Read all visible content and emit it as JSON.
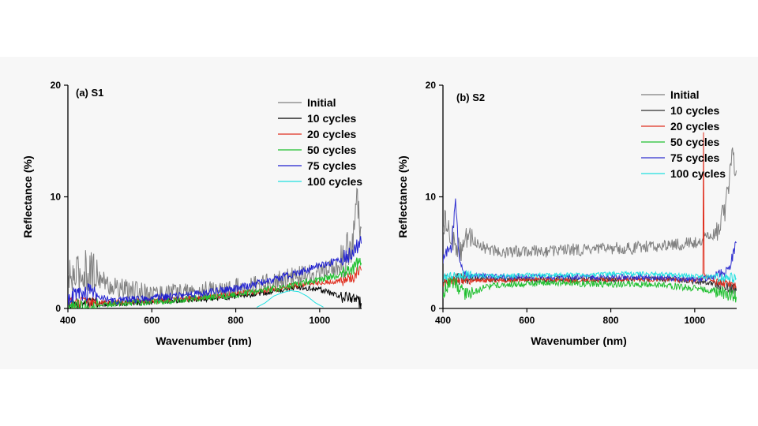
{
  "chart_data": [
    {
      "type": "line",
      "title": "(a) S1",
      "xlabel": "Wavenumber (nm)",
      "ylabel": "Reflectance (%)",
      "xlim": [
        400,
        1100
      ],
      "ylim": [
        0,
        20
      ],
      "xticks": [
        400,
        600,
        800,
        1000
      ],
      "yticks": [
        0,
        10,
        20
      ],
      "legend_position": "top-right",
      "series": [
        {
          "name": "Initial",
          "color": "#808080",
          "x": [
            400,
            450,
            500,
            550,
            600,
            650,
            700,
            750,
            800,
            850,
            900,
            950,
            1000,
            1050,
            1080,
            1090,
            1100
          ],
          "y": [
            2.5,
            3.5,
            2.0,
            1.6,
            1.4,
            1.4,
            1.5,
            1.6,
            1.8,
            2.1,
            2.5,
            2.9,
            3.2,
            3.8,
            6.0,
            9.5,
            7.0
          ]
        },
        {
          "name": "10 cycles",
          "color": "#000000",
          "x": [
            400,
            450,
            500,
            550,
            600,
            650,
            700,
            750,
            800,
            850,
            900,
            950,
            1000,
            1050,
            1080,
            1090,
            1100
          ],
          "y": [
            0.4,
            0.4,
            0.4,
            0.5,
            0.6,
            0.7,
            0.8,
            0.9,
            1.1,
            1.3,
            1.6,
            1.9,
            1.7,
            1.1,
            0.8,
            0.6,
            0.5
          ]
        },
        {
          "name": "20 cycles",
          "color": "#e03020",
          "x": [
            400,
            450,
            500,
            550,
            600,
            650,
            700,
            750,
            800,
            850,
            900,
            950,
            1000,
            1050,
            1080,
            1090,
            1100
          ],
          "y": [
            0.5,
            0.5,
            0.5,
            0.6,
            0.7,
            0.8,
            0.9,
            1.1,
            1.3,
            1.5,
            1.8,
            2.1,
            2.3,
            2.5,
            2.8,
            3.2,
            3.5
          ]
        },
        {
          "name": "50 cycles",
          "color": "#20c030",
          "x": [
            400,
            450,
            500,
            550,
            600,
            650,
            700,
            750,
            800,
            850,
            900,
            950,
            1000,
            1050,
            1080,
            1090,
            1100
          ],
          "y": [
            0.3,
            0.3,
            0.4,
            0.5,
            0.6,
            0.7,
            0.9,
            1.0,
            1.2,
            1.5,
            1.8,
            2.2,
            2.6,
            3.0,
            3.5,
            4.0,
            4.2
          ]
        },
        {
          "name": "75 cycles",
          "color": "#2020d0",
          "x": [
            400,
            450,
            500,
            550,
            600,
            650,
            700,
            750,
            800,
            850,
            900,
            950,
            1000,
            1050,
            1080,
            1090,
            1100
          ],
          "y": [
            1.0,
            1.5,
            0.7,
            0.8,
            1.0,
            1.1,
            1.3,
            1.5,
            1.8,
            2.2,
            2.7,
            3.2,
            3.8,
            4.4,
            5.0,
            5.5,
            6.0
          ]
        },
        {
          "name": "100 cycles",
          "color": "#20e0e0",
          "x": [
            850,
            870,
            890,
            910,
            930,
            950,
            970,
            990,
            1010
          ],
          "y": [
            0.1,
            0.5,
            1.1,
            1.4,
            1.6,
            1.5,
            1.1,
            0.5,
            0.1
          ]
        }
      ]
    },
    {
      "type": "line",
      "title": "(b) S2",
      "xlabel": "Wavenumber (nm)",
      "ylabel": "Reflectance (%)",
      "xlim": [
        400,
        1100
      ],
      "ylim": [
        0,
        20
      ],
      "xticks": [
        400,
        600,
        800,
        1000
      ],
      "yticks": [
        0,
        10,
        20
      ],
      "legend_position": "top-right",
      "series": [
        {
          "name": "Initial",
          "color": "#808080",
          "x": [
            400,
            420,
            440,
            460,
            500,
            550,
            600,
            650,
            700,
            750,
            800,
            850,
            900,
            950,
            1000,
            1050,
            1070,
            1080,
            1090,
            1100
          ],
          "y": [
            8.0,
            6.5,
            5.0,
            6.5,
            5.4,
            5.0,
            5.2,
            5.1,
            5.3,
            5.2,
            5.4,
            5.4,
            5.6,
            5.7,
            5.9,
            6.8,
            8.5,
            11.0,
            14.0,
            12.0
          ]
        },
        {
          "name": "10 cycles",
          "color": "#303030",
          "x": [
            400,
            450,
            500,
            550,
            600,
            650,
            700,
            750,
            800,
            850,
            900,
            950,
            1000,
            1050,
            1080,
            1090,
            1100
          ],
          "y": [
            2.5,
            2.7,
            2.6,
            2.6,
            2.6,
            2.6,
            2.6,
            2.6,
            2.6,
            2.6,
            2.6,
            2.6,
            2.4,
            2.2,
            2.0,
            1.8,
            1.5
          ]
        },
        {
          "name": "20 cycles",
          "color": "#e03020",
          "x": [
            400,
            450,
            500,
            550,
            600,
            650,
            700,
            750,
            800,
            850,
            900,
            950,
            1000,
            1020,
            1021,
            1022,
            1050,
            1080,
            1100
          ],
          "y": [
            2.4,
            2.6,
            2.5,
            2.5,
            2.6,
            2.6,
            2.5,
            2.5,
            2.6,
            2.6,
            2.6,
            2.6,
            2.5,
            2.8,
            15.8,
            3.0,
            2.4,
            2.2,
            1.8
          ]
        },
        {
          "name": "50 cycles",
          "color": "#20c030",
          "x": [
            400,
            420,
            440,
            460,
            500,
            550,
            600,
            650,
            700,
            750,
            800,
            850,
            900,
            950,
            1000,
            1050,
            1080,
            1100
          ],
          "y": [
            1.5,
            2.5,
            1.8,
            1.2,
            1.9,
            2.2,
            2.2,
            2.3,
            2.3,
            2.2,
            2.2,
            2.2,
            2.2,
            2.0,
            1.8,
            1.6,
            1.2,
            1.0
          ]
        },
        {
          "name": "75 cycles",
          "color": "#3030d0",
          "x": [
            400,
            420,
            430,
            440,
            460,
            500,
            550,
            600,
            650,
            700,
            750,
            800,
            850,
            900,
            950,
            1000,
            1050,
            1080,
            1100
          ],
          "y": [
            4.5,
            5.5,
            9.5,
            4.0,
            3.0,
            2.9,
            2.8,
            2.9,
            2.8,
            2.8,
            2.8,
            2.8,
            2.8,
            2.8,
            2.7,
            2.6,
            2.8,
            3.5,
            6.0
          ]
        },
        {
          "name": "100 cycles",
          "color": "#20e0e0",
          "x": [
            400,
            450,
            500,
            550,
            600,
            650,
            700,
            750,
            800,
            850,
            900,
            950,
            1000,
            1050,
            1080,
            1100
          ],
          "y": [
            2.8,
            3.0,
            2.9,
            2.9,
            3.0,
            3.0,
            3.0,
            3.0,
            3.1,
            3.1,
            3.1,
            3.0,
            2.9,
            2.8,
            2.8,
            2.7
          ]
        }
      ]
    }
  ]
}
